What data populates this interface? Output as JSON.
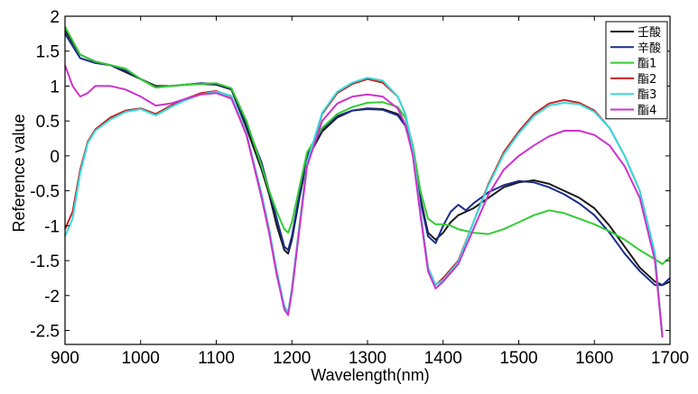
{
  "chart_data": {
    "type": "line",
    "title": "",
    "xlabel": "Wavelength(nm)",
    "ylabel": "Reference value",
    "xlim": [
      900,
      1700
    ],
    "ylim": [
      -2.7,
      2
    ],
    "xticks": [
      900,
      1000,
      1100,
      1200,
      1300,
      1400,
      1500,
      1600,
      1700
    ],
    "yticks": [
      2,
      1.5,
      1,
      0.5,
      0,
      -0.5,
      -1,
      -1.5,
      -2,
      -2.5
    ],
    "ytick_labels": [
      "2",
      "1.5",
      "1",
      "0.5",
      "0",
      "-0.5",
      "-1",
      "-1.5",
      "-2",
      "-2.5"
    ],
    "grid": false,
    "legend": "top-right",
    "series": [
      {
        "name": "壬酸",
        "color": "#1a1a1a",
        "x": [
          900,
          920,
          940,
          960,
          980,
          1000,
          1020,
          1040,
          1060,
          1080,
          1100,
          1120,
          1140,
          1160,
          1170,
          1180,
          1190,
          1195,
          1200,
          1210,
          1220,
          1240,
          1260,
          1280,
          1300,
          1320,
          1340,
          1350,
          1360,
          1370,
          1380,
          1390,
          1400,
          1410,
          1420,
          1430,
          1440,
          1460,
          1480,
          1500,
          1520,
          1540,
          1560,
          1580,
          1600,
          1620,
          1640,
          1660,
          1680,
          1690,
          1700
        ],
        "y": [
          1.8,
          1.45,
          1.35,
          1.3,
          1.2,
          1.1,
          1.0,
          1.0,
          1.02,
          1.03,
          1.02,
          0.95,
          0.4,
          -0.2,
          -0.55,
          -1.0,
          -1.35,
          -1.4,
          -1.2,
          -0.6,
          -0.05,
          0.35,
          0.55,
          0.65,
          0.68,
          0.67,
          0.6,
          0.45,
          0.1,
          -0.6,
          -1.1,
          -1.2,
          -1.1,
          -0.95,
          -0.85,
          -0.8,
          -0.75,
          -0.6,
          -0.45,
          -0.38,
          -0.35,
          -0.4,
          -0.5,
          -0.6,
          -0.75,
          -1.0,
          -1.3,
          -1.6,
          -1.8,
          -1.85,
          -1.8
        ]
      },
      {
        "name": "辛酸",
        "color": "#1c2c8c",
        "x": [
          900,
          920,
          940,
          960,
          980,
          1000,
          1020,
          1040,
          1060,
          1080,
          1100,
          1120,
          1140,
          1160,
          1170,
          1180,
          1190,
          1195,
          1200,
          1210,
          1220,
          1240,
          1260,
          1280,
          1300,
          1320,
          1340,
          1350,
          1360,
          1370,
          1380,
          1390,
          1400,
          1410,
          1420,
          1430,
          1440,
          1460,
          1480,
          1500,
          1520,
          1540,
          1560,
          1580,
          1600,
          1620,
          1640,
          1660,
          1680,
          1690,
          1700
        ],
        "y": [
          1.75,
          1.4,
          1.33,
          1.3,
          1.22,
          1.1,
          0.98,
          1.0,
          1.02,
          1.04,
          1.03,
          0.96,
          0.45,
          -0.1,
          -0.5,
          -0.9,
          -1.3,
          -1.35,
          -1.15,
          -0.55,
          0.0,
          0.38,
          0.57,
          0.65,
          0.67,
          0.66,
          0.58,
          0.43,
          0.05,
          -0.65,
          -1.15,
          -1.25,
          -1.0,
          -0.8,
          -0.7,
          -0.78,
          -0.68,
          -0.52,
          -0.42,
          -0.36,
          -0.38,
          -0.45,
          -0.55,
          -0.68,
          -0.85,
          -1.1,
          -1.4,
          -1.65,
          -1.85,
          -1.85,
          -1.75
        ]
      },
      {
        "name": "酯1",
        "color": "#33cc33",
        "x": [
          900,
          920,
          940,
          960,
          980,
          1000,
          1020,
          1040,
          1060,
          1080,
          1100,
          1120,
          1140,
          1160,
          1170,
          1180,
          1190,
          1195,
          1200,
          1210,
          1220,
          1240,
          1260,
          1280,
          1300,
          1320,
          1340,
          1350,
          1360,
          1370,
          1380,
          1390,
          1400,
          1410,
          1420,
          1440,
          1460,
          1480,
          1500,
          1520,
          1540,
          1560,
          1580,
          1600,
          1620,
          1640,
          1660,
          1680,
          1690,
          1700
        ],
        "y": [
          1.85,
          1.45,
          1.35,
          1.3,
          1.25,
          1.1,
          0.98,
          1.0,
          1.02,
          1.03,
          1.04,
          0.97,
          0.5,
          -0.15,
          -0.5,
          -0.8,
          -1.05,
          -1.1,
          -0.95,
          -0.45,
          0.05,
          0.4,
          0.6,
          0.7,
          0.76,
          0.77,
          0.7,
          0.55,
          0.15,
          -0.5,
          -0.9,
          -0.98,
          -0.98,
          -1.0,
          -1.05,
          -1.1,
          -1.12,
          -1.05,
          -0.95,
          -0.85,
          -0.78,
          -0.82,
          -0.9,
          -0.98,
          -1.08,
          -1.2,
          -1.35,
          -1.48,
          -1.55,
          -1.45
        ]
      },
      {
        "name": "酯2",
        "color": "#cc2222",
        "x": [
          900,
          910,
          920,
          930,
          940,
          960,
          980,
          1000,
          1020,
          1040,
          1060,
          1080,
          1100,
          1120,
          1140,
          1160,
          1170,
          1180,
          1190,
          1195,
          1200,
          1210,
          1220,
          1240,
          1260,
          1280,
          1300,
          1320,
          1340,
          1350,
          1360,
          1370,
          1380,
          1390,
          1400,
          1420,
          1440,
          1460,
          1480,
          1500,
          1520,
          1540,
          1560,
          1580,
          1600,
          1620,
          1640,
          1660,
          1680,
          1690
        ],
        "y": [
          -1.05,
          -0.8,
          -0.2,
          0.2,
          0.38,
          0.55,
          0.65,
          0.68,
          0.6,
          0.72,
          0.82,
          0.9,
          0.93,
          0.85,
          0.3,
          -0.6,
          -1.1,
          -1.7,
          -2.15,
          -2.25,
          -1.9,
          -1.0,
          -0.1,
          0.6,
          0.9,
          1.03,
          1.1,
          1.05,
          0.85,
          0.6,
          0.1,
          -0.8,
          -1.6,
          -1.85,
          -1.75,
          -1.5,
          -0.95,
          -0.4,
          0.05,
          0.35,
          0.6,
          0.75,
          0.8,
          0.76,
          0.65,
          0.4,
          0.0,
          -0.5,
          -1.4,
          -2.6
        ]
      },
      {
        "name": "酯3",
        "color": "#33dddd",
        "x": [
          900,
          910,
          920,
          930,
          940,
          960,
          980,
          1000,
          1020,
          1040,
          1060,
          1080,
          1100,
          1120,
          1140,
          1160,
          1170,
          1180,
          1190,
          1195,
          1200,
          1210,
          1220,
          1240,
          1260,
          1280,
          1300,
          1320,
          1340,
          1350,
          1360,
          1370,
          1380,
          1390,
          1400,
          1420,
          1440,
          1460,
          1480,
          1500,
          1520,
          1540,
          1560,
          1580,
          1600,
          1620,
          1640,
          1660,
          1680,
          1690
        ],
        "y": [
          -1.15,
          -0.9,
          -0.25,
          0.18,
          0.36,
          0.52,
          0.63,
          0.67,
          0.58,
          0.7,
          0.8,
          0.88,
          0.92,
          0.86,
          0.32,
          -0.55,
          -1.05,
          -1.65,
          -2.15,
          -2.25,
          -1.9,
          -1.0,
          -0.1,
          0.62,
          0.92,
          1.05,
          1.12,
          1.08,
          0.85,
          0.6,
          0.1,
          -0.8,
          -1.6,
          -1.85,
          -1.78,
          -1.52,
          -0.95,
          -0.42,
          0.02,
          0.32,
          0.57,
          0.72,
          0.76,
          0.74,
          0.63,
          0.4,
          0.0,
          -0.5,
          -1.4,
          -2.6
        ]
      },
      {
        "name": "酯4",
        "color": "#cc33cc",
        "x": [
          900,
          910,
          920,
          930,
          940,
          960,
          980,
          1000,
          1020,
          1040,
          1060,
          1080,
          1100,
          1120,
          1140,
          1160,
          1170,
          1180,
          1190,
          1195,
          1200,
          1210,
          1220,
          1240,
          1260,
          1280,
          1300,
          1320,
          1340,
          1350,
          1360,
          1370,
          1380,
          1390,
          1400,
          1420,
          1440,
          1460,
          1480,
          1500,
          1520,
          1540,
          1560,
          1580,
          1600,
          1620,
          1640,
          1660,
          1680,
          1690
        ],
        "y": [
          1.3,
          1.0,
          0.85,
          0.9,
          1.0,
          1.0,
          0.95,
          0.85,
          0.72,
          0.75,
          0.82,
          0.88,
          0.9,
          0.82,
          0.3,
          -0.6,
          -1.1,
          -1.7,
          -2.2,
          -2.28,
          -1.95,
          -1.05,
          -0.15,
          0.5,
          0.75,
          0.85,
          0.88,
          0.85,
          0.68,
          0.45,
          0.0,
          -0.85,
          -1.65,
          -1.9,
          -1.8,
          -1.55,
          -1.05,
          -0.55,
          -0.2,
          0.0,
          0.15,
          0.28,
          0.36,
          0.36,
          0.3,
          0.15,
          -0.15,
          -0.6,
          -1.5,
          -2.6
        ]
      }
    ]
  }
}
